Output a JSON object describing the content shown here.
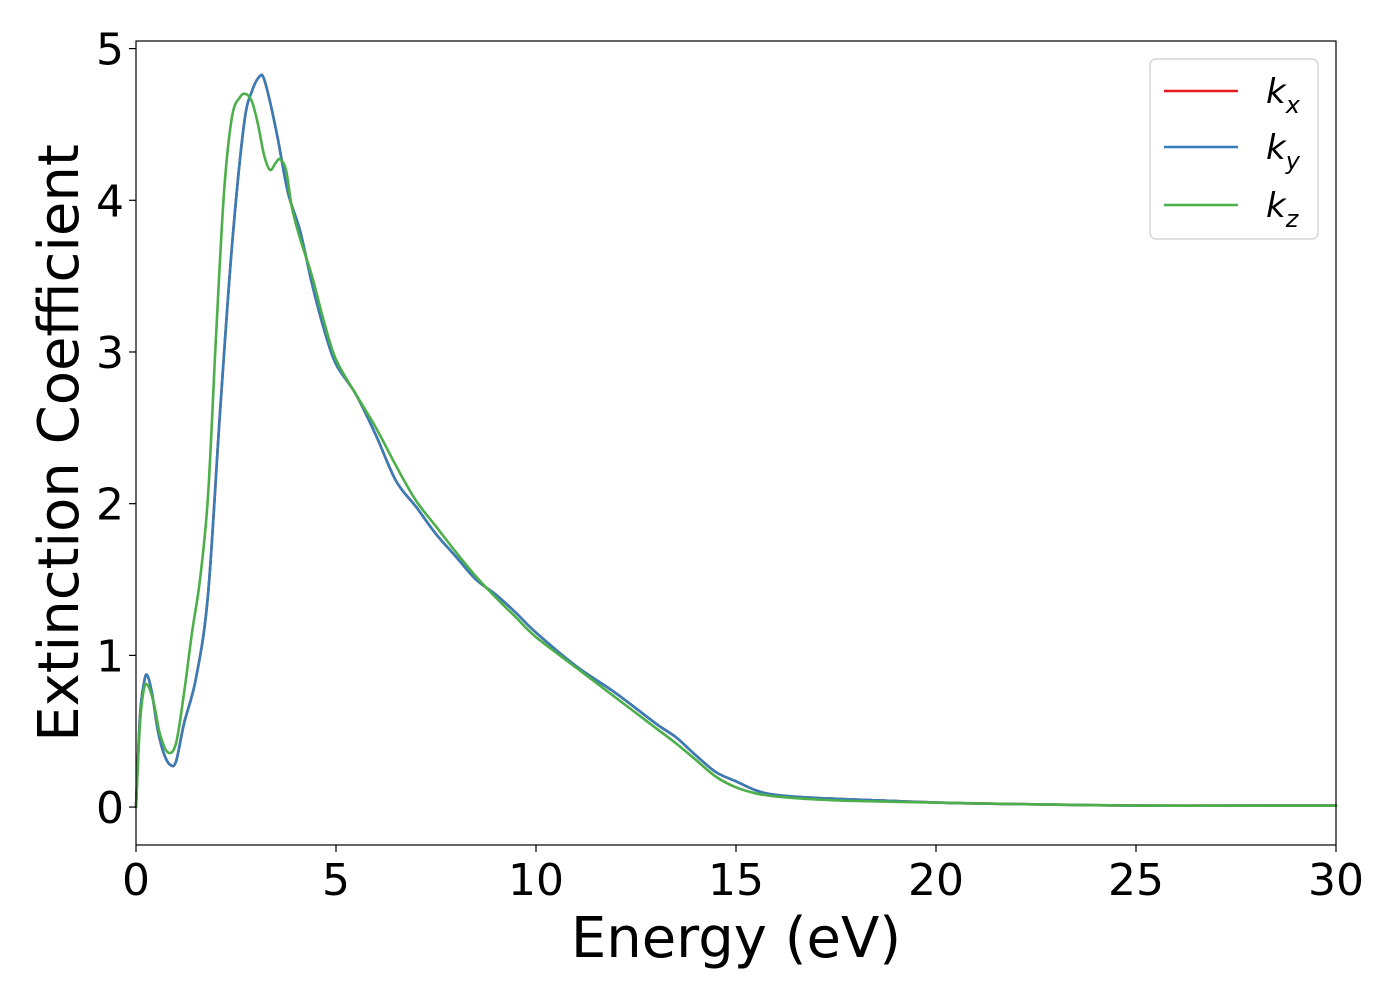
{
  "chart_data": {
    "type": "line",
    "title": "",
    "xlabel": "Energy (eV)",
    "ylabel": "Extinction Coefficient",
    "xlim": [
      0,
      30
    ],
    "ylim": [
      -0.25,
      5.05
    ],
    "xticks": [
      0,
      5,
      10,
      15,
      20,
      25,
      30
    ],
    "yticks": [
      0,
      1,
      2,
      3,
      4,
      5
    ],
    "grid": false,
    "legend_position": "top-right",
    "series": [
      {
        "name": "k",
        "subscript": "x",
        "color": "#e41a1c",
        "x": [
          0,
          0.1,
          0.2,
          0.28,
          0.4,
          0.55,
          0.7,
          0.85,
          1.0,
          1.2,
          1.5,
          1.8,
          2.1,
          2.4,
          2.7,
          2.9,
          3.1,
          3.2,
          3.35,
          3.55,
          3.8,
          4.1,
          4.4,
          4.7,
          5.0,
          5.5,
          6.0,
          6.5,
          7.0,
          7.5,
          8.0,
          8.5,
          9.0,
          9.5,
          10.0,
          11.0,
          12.0,
          13.0,
          13.5,
          14.0,
          14.5,
          15.0,
          15.5,
          16.0,
          17.0,
          18.0,
          20.0,
          22.0,
          25.0,
          28.0,
          30.0
        ],
        "values": [
          0.0,
          0.6,
          0.82,
          0.87,
          0.75,
          0.5,
          0.35,
          0.28,
          0.3,
          0.55,
          0.85,
          1.4,
          2.6,
          3.7,
          4.5,
          4.72,
          4.82,
          4.8,
          4.65,
          4.4,
          4.05,
          3.8,
          3.45,
          3.15,
          2.92,
          2.72,
          2.45,
          2.15,
          1.98,
          1.8,
          1.65,
          1.5,
          1.4,
          1.28,
          1.15,
          0.93,
          0.75,
          0.55,
          0.46,
          0.34,
          0.23,
          0.17,
          0.11,
          0.08,
          0.06,
          0.05,
          0.03,
          0.02,
          0.01,
          0.01,
          0.01
        ]
      },
      {
        "name": "k",
        "subscript": "y",
        "color": "#377eb8",
        "x": [
          0,
          0.1,
          0.2,
          0.28,
          0.4,
          0.55,
          0.7,
          0.85,
          1.0,
          1.2,
          1.5,
          1.8,
          2.1,
          2.4,
          2.7,
          2.9,
          3.1,
          3.2,
          3.35,
          3.55,
          3.8,
          4.1,
          4.4,
          4.7,
          5.0,
          5.5,
          6.0,
          6.5,
          7.0,
          7.5,
          8.0,
          8.5,
          9.0,
          9.5,
          10.0,
          11.0,
          12.0,
          13.0,
          13.5,
          14.0,
          14.5,
          15.0,
          15.5,
          16.0,
          17.0,
          18.0,
          20.0,
          22.0,
          25.0,
          28.0,
          30.0
        ],
        "values": [
          0.0,
          0.6,
          0.82,
          0.87,
          0.75,
          0.5,
          0.35,
          0.28,
          0.3,
          0.55,
          0.85,
          1.4,
          2.6,
          3.7,
          4.5,
          4.72,
          4.82,
          4.8,
          4.65,
          4.4,
          4.05,
          3.8,
          3.45,
          3.15,
          2.92,
          2.72,
          2.45,
          2.15,
          1.98,
          1.8,
          1.65,
          1.5,
          1.4,
          1.28,
          1.15,
          0.93,
          0.75,
          0.55,
          0.46,
          0.34,
          0.23,
          0.17,
          0.11,
          0.08,
          0.06,
          0.05,
          0.03,
          0.02,
          0.01,
          0.01,
          0.01
        ]
      },
      {
        "name": "k",
        "subscript": "z",
        "color": "#4daf4a",
        "x": [
          0,
          0.1,
          0.2,
          0.3,
          0.45,
          0.6,
          0.8,
          1.0,
          1.2,
          1.4,
          1.6,
          1.8,
          2.0,
          2.2,
          2.4,
          2.6,
          2.75,
          2.9,
          3.05,
          3.2,
          3.35,
          3.5,
          3.6,
          3.75,
          3.9,
          4.1,
          4.4,
          4.7,
          5.0,
          5.5,
          6.0,
          6.5,
          7.0,
          7.5,
          8.0,
          8.5,
          9.0,
          9.5,
          10.0,
          11.0,
          12.0,
          13.0,
          13.5,
          14.0,
          14.5,
          15.0,
          15.5,
          16.0,
          17.0,
          18.0,
          20.0,
          22.0,
          25.0,
          28.0,
          30.0
        ],
        "values": [
          0.0,
          0.55,
          0.78,
          0.8,
          0.68,
          0.48,
          0.36,
          0.42,
          0.75,
          1.15,
          1.5,
          2.05,
          3.1,
          4.05,
          4.55,
          4.68,
          4.7,
          4.65,
          4.5,
          4.3,
          4.2,
          4.25,
          4.27,
          4.2,
          3.95,
          3.75,
          3.5,
          3.2,
          2.95,
          2.72,
          2.5,
          2.25,
          2.02,
          1.85,
          1.68,
          1.52,
          1.38,
          1.25,
          1.12,
          0.92,
          0.72,
          0.52,
          0.42,
          0.31,
          0.2,
          0.13,
          0.09,
          0.07,
          0.05,
          0.04,
          0.03,
          0.02,
          0.01,
          0.01,
          0.01
        ]
      }
    ]
  }
}
